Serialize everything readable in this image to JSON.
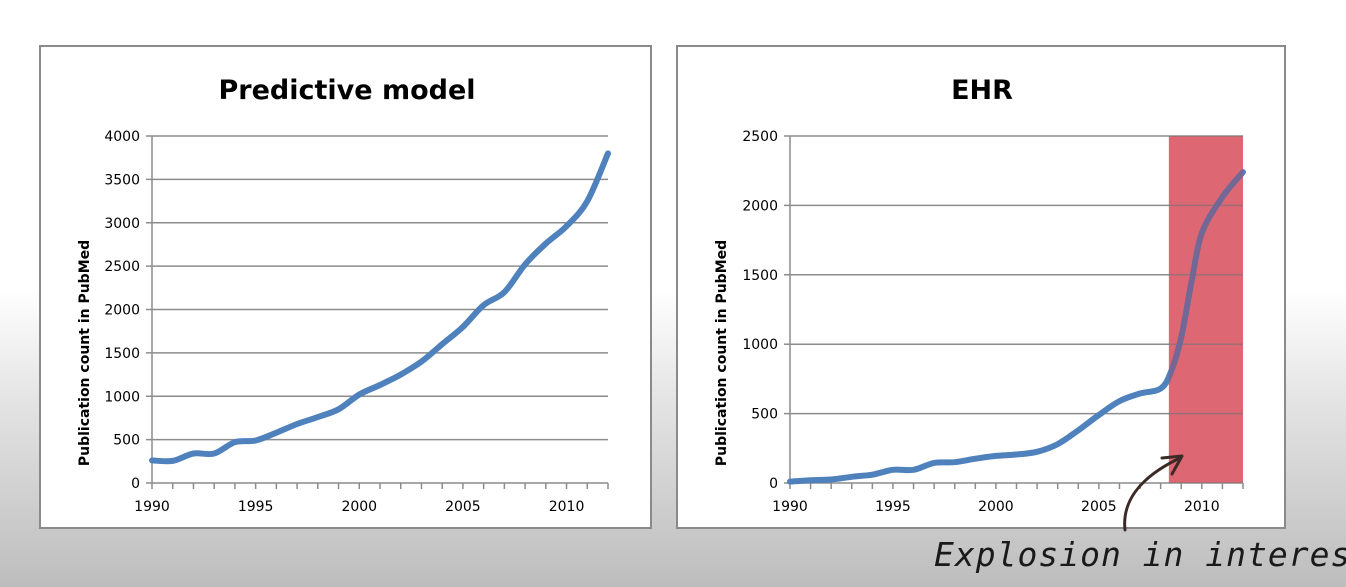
{
  "chart_data": [
    {
      "type": "line",
      "title": "Predictive model",
      "xlabel": "",
      "ylabel": "Publication count in PubMed",
      "xlim": [
        1990,
        2012
      ],
      "ylim": [
        0,
        4000
      ],
      "x_ticks": [
        1990,
        1995,
        2000,
        2005,
        2010
      ],
      "y_ticks": [
        0,
        500,
        1000,
        1500,
        2000,
        2500,
        3000,
        3500,
        4000
      ],
      "grid": true,
      "series_color": "#4f81bd",
      "series": [
        {
          "x": [
            1990,
            1991,
            1992,
            1993,
            1994,
            1995,
            1996,
            1997,
            1998,
            1999,
            2000,
            2001,
            2002,
            2003,
            2004,
            2005,
            2006,
            2007,
            2008,
            2009,
            2010,
            2011,
            2012
          ],
          "values": [
            260,
            255,
            340,
            340,
            470,
            490,
            580,
            680,
            760,
            850,
            1020,
            1130,
            1250,
            1400,
            1600,
            1800,
            2050,
            2200,
            2520,
            2760,
            2960,
            3250,
            3800
          ]
        }
      ]
    },
    {
      "type": "line",
      "title": "EHR",
      "xlabel": "",
      "ylabel": "Publication count in PubMed",
      "xlim": [
        1990,
        2012
      ],
      "ylim": [
        0,
        2500
      ],
      "x_ticks": [
        1990,
        1995,
        2000,
        2005,
        2010
      ],
      "y_ticks": [
        0,
        500,
        1000,
        1500,
        2000,
        2500
      ],
      "grid": true,
      "series_color": "#4f81bd",
      "highlight": {
        "x_start": 2008.4,
        "x_end": 2012,
        "color": "#f0737d"
      },
      "series": [
        {
          "x": [
            1990,
            1991,
            1992,
            1993,
            1994,
            1995,
            1996,
            1997,
            1998,
            1999,
            2000,
            2001,
            2002,
            2003,
            2004,
            2005,
            2006,
            2007,
            2008,
            2008.5,
            2009,
            2009.5,
            2010,
            2011,
            2012
          ],
          "values": [
            10,
            20,
            25,
            45,
            60,
            95,
            95,
            145,
            150,
            175,
            195,
            205,
            225,
            280,
            380,
            490,
            590,
            645,
            680,
            800,
            1050,
            1450,
            1800,
            2060,
            2240
          ]
        }
      ]
    }
  ],
  "annotation": {
    "text": "Explosion in interest"
  }
}
